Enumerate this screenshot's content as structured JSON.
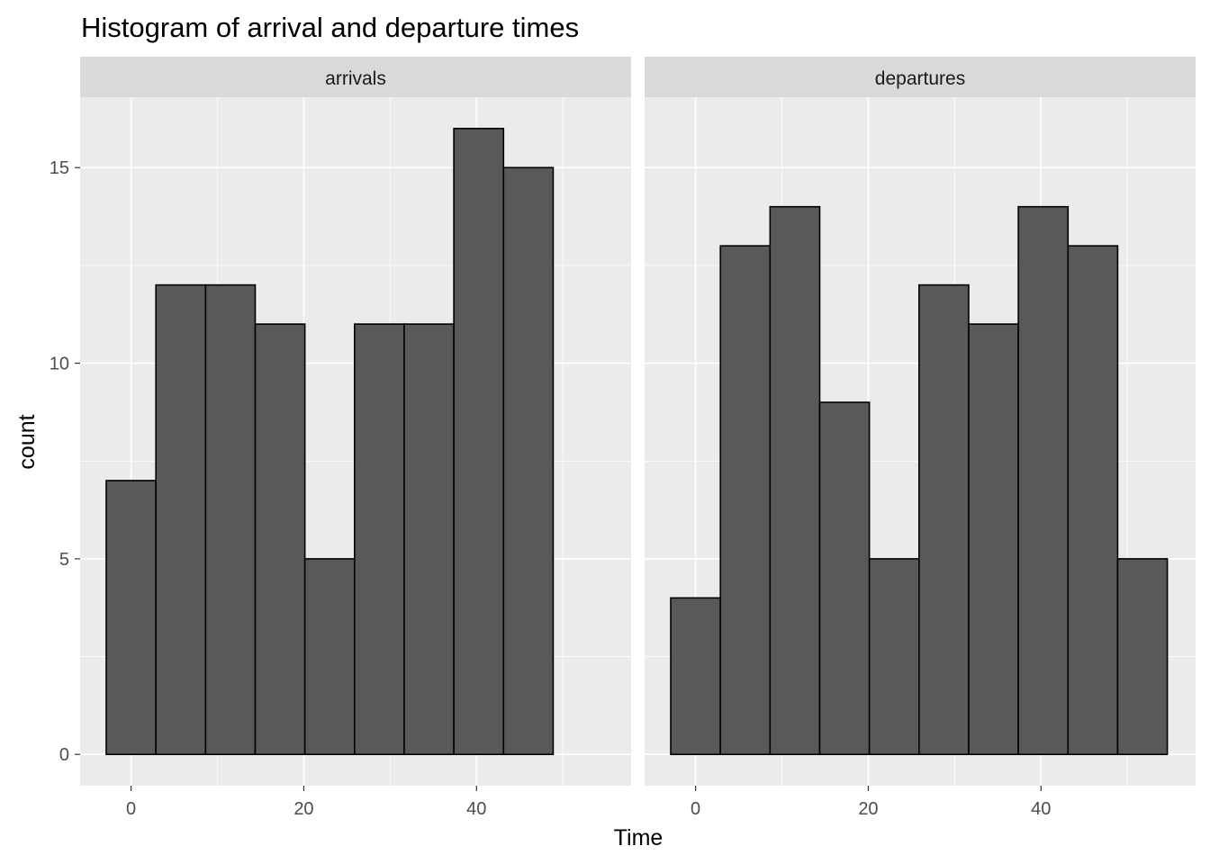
{
  "chart_data": {
    "type": "bar",
    "title": "Histogram of arrival and departure times",
    "xlabel": "Time",
    "ylabel": "count",
    "xlim": [
      -5.9,
      57.9
    ],
    "ylim": [
      -0.8,
      16.8
    ],
    "x_ticks": [
      0,
      20,
      40
    ],
    "y_ticks": [
      0,
      5,
      10,
      15
    ],
    "bin_width": 5.75,
    "bin_starts": [
      -2.875,
      2.875,
      8.625,
      14.375,
      20.125,
      25.875,
      31.625,
      37.375,
      43.125,
      48.875
    ],
    "grid": true,
    "panels": [
      {
        "name": "arrivals",
        "counts": [
          7,
          12,
          12,
          11,
          5,
          11,
          11,
          16,
          15,
          0
        ]
      },
      {
        "name": "departures",
        "counts": [
          4,
          13,
          14,
          9,
          5,
          12,
          11,
          14,
          13,
          5
        ]
      }
    ]
  },
  "colors": {
    "panel_background": "#ebebeb",
    "strip_background": "#d9d9d9",
    "grid": "#ffffff",
    "bar_fill": "#595959",
    "bar_outline": "#000000",
    "tick": "#333333"
  }
}
